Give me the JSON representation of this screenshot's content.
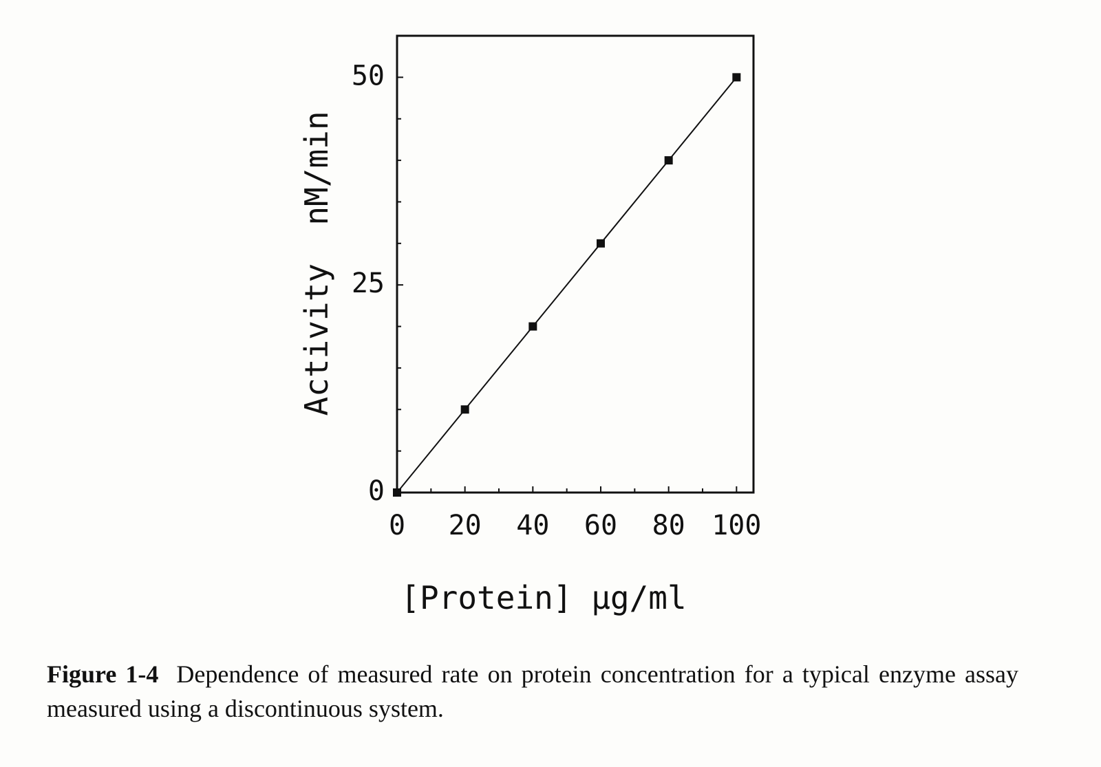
{
  "chart_data": {
    "type": "line",
    "x_label": "[Protein] μg/ml",
    "y_label": "Activity  nM/min",
    "x": [
      0,
      20,
      40,
      60,
      80,
      100
    ],
    "series": [
      {
        "color": "#111111",
        "values": [
          0,
          10,
          20,
          30,
          40,
          50
        ]
      }
    ],
    "xlim": [
      0,
      105
    ],
    "ylim": [
      0,
      55
    ],
    "xticks": [
      0,
      20,
      40,
      60,
      80,
      100
    ],
    "yticks": [
      0,
      25,
      50
    ],
    "xminor": [
      10,
      30,
      50,
      70,
      90
    ],
    "yminor": [
      5,
      10,
      15,
      20,
      30,
      35,
      40,
      45
    ],
    "grid": false
  },
  "caption": {
    "label": "Figure 1-4",
    "text": "Dependence of measured rate on protein concentration for a typical enzyme assay measured using a discontinuous system."
  }
}
